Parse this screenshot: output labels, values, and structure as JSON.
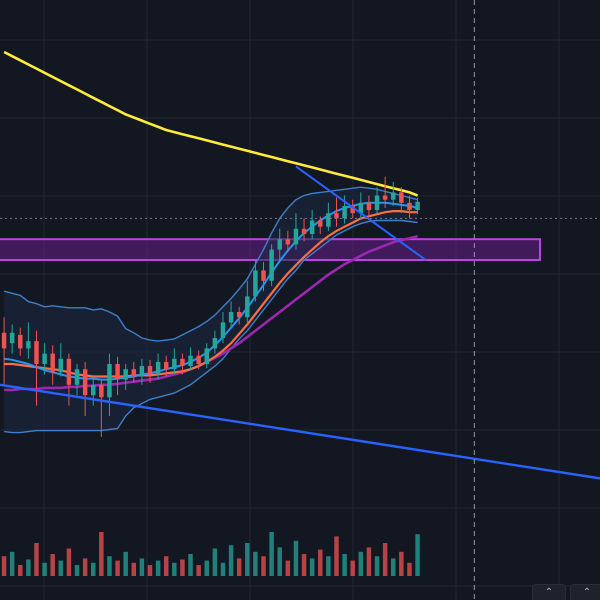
{
  "app": {
    "name": ""
  },
  "colors": {
    "background": "#131722",
    "grid": "#232733",
    "candle_up": "#26a69a",
    "candle_down": "#ef5350",
    "bb_band": "#3d7fc9",
    "bb_fill": "#1c2a42",
    "bb_basis": "#2196f3",
    "ema_fast": "#ff6e40",
    "ema_slow": "#9c27b0",
    "ma_long": "#ffeb3b",
    "trendline": "#2962ff",
    "zone_fill": "#7b1fa2",
    "zone_border": "#c040e8",
    "crosshair": "#787b86"
  },
  "controls": {
    "scroll_left_icon": "chevron-up-icon",
    "scroll_right_icon": "chevron-up-icon"
  },
  "chart_data": {
    "type": "candlestick",
    "candles": [
      [
        220,
        205,
        170,
        235
      ],
      [
        210,
        220,
        200,
        228
      ],
      [
        218,
        205,
        198,
        225
      ],
      [
        205,
        212,
        195,
        230
      ],
      [
        212,
        190,
        150,
        222
      ],
      [
        190,
        200,
        180,
        210
      ],
      [
        200,
        182,
        170,
        208
      ],
      [
        182,
        195,
        178,
        210
      ],
      [
        195,
        170,
        150,
        200
      ],
      [
        170,
        185,
        160,
        190
      ],
      [
        185,
        160,
        140,
        192
      ],
      [
        160,
        170,
        150,
        178
      ],
      [
        170,
        158,
        120,
        175
      ],
      [
        158,
        190,
        140,
        200
      ],
      [
        190,
        175,
        160,
        197
      ],
      [
        175,
        185,
        165,
        190
      ],
      [
        185,
        178,
        172,
        192
      ],
      [
        178,
        188,
        170,
        195
      ],
      [
        188,
        180,
        172,
        194
      ],
      [
        180,
        192,
        175,
        200
      ],
      [
        192,
        185,
        178,
        198
      ],
      [
        185,
        195,
        180,
        205
      ],
      [
        195,
        188,
        180,
        200
      ],
      [
        188,
        198,
        184,
        206
      ],
      [
        198,
        190,
        185,
        203
      ],
      [
        190,
        205,
        186,
        210
      ],
      [
        205,
        215,
        200,
        222
      ],
      [
        215,
        230,
        210,
        240
      ],
      [
        230,
        240,
        225,
        250
      ],
      [
        240,
        235,
        228,
        245
      ],
      [
        235,
        255,
        230,
        270
      ],
      [
        255,
        280,
        250,
        290
      ],
      [
        280,
        270,
        260,
        288
      ],
      [
        270,
        300,
        265,
        305
      ],
      [
        300,
        310,
        290,
        320
      ],
      [
        310,
        305,
        298,
        318
      ],
      [
        305,
        320,
        300,
        335
      ],
      [
        320,
        315,
        308,
        330
      ],
      [
        315,
        328,
        310,
        338
      ],
      [
        328,
        322,
        315,
        332
      ],
      [
        322,
        335,
        318,
        345
      ],
      [
        335,
        330,
        322,
        350
      ],
      [
        330,
        342,
        325,
        352
      ],
      [
        342,
        335,
        330,
        348
      ],
      [
        335,
        345,
        330,
        355
      ],
      [
        345,
        338,
        332,
        352
      ],
      [
        338,
        352,
        335,
        360
      ],
      [
        352,
        348,
        340,
        370
      ],
      [
        348,
        355,
        342,
        365
      ],
      [
        355,
        345,
        335,
        360
      ],
      [
        345,
        338,
        330,
        352
      ],
      [
        338,
        346,
        334,
        350
      ]
    ],
    "bb_upper": [
      260,
      258,
      256,
      250,
      248,
      245,
      246,
      245,
      244,
      244,
      244,
      242,
      243,
      240,
      236,
      224,
      220,
      215,
      213,
      212,
      213,
      214,
      218,
      222,
      226,
      231,
      237,
      245,
      253,
      262,
      272,
      286,
      300,
      316,
      330,
      340,
      348,
      352,
      354,
      355,
      356,
      357,
      358,
      359,
      360,
      359,
      358,
      356,
      354,
      352,
      350,
      348
    ],
    "bb_lower": [
      125,
      124,
      124,
      125,
      126,
      126,
      126,
      126,
      126,
      126,
      126,
      126,
      126,
      127,
      128,
      140,
      148,
      152,
      156,
      158,
      160,
      162,
      166,
      170,
      176,
      182,
      188,
      195,
      205,
      214,
      222,
      232,
      242,
      252,
      262,
      272,
      280,
      290,
      296,
      302,
      308,
      314,
      318,
      322,
      325,
      327,
      328,
      328,
      328,
      328,
      327,
      326
    ],
    "bb_basis": [
      195,
      194,
      192,
      190,
      187,
      184,
      182,
      180,
      178,
      177,
      176,
      176,
      175,
      175,
      176,
      177,
      178,
      180,
      181,
      183,
      185,
      187,
      189,
      192,
      196,
      201,
      208,
      216,
      225,
      234,
      244,
      255,
      266,
      278,
      289,
      299,
      308,
      316,
      322,
      328,
      333,
      337,
      340,
      342,
      344,
      345,
      345,
      345,
      344,
      343,
      342,
      340
    ],
    "ema_fast": [
      190,
      190,
      189,
      188,
      187,
      186,
      185,
      184,
      182,
      180,
      179,
      178,
      178,
      178,
      178,
      178,
      179,
      179,
      179,
      180,
      181,
      182,
      183,
      185,
      188,
      192,
      197,
      203,
      210,
      219,
      228,
      238,
      248,
      258,
      268,
      277,
      285,
      293,
      300,
      307,
      313,
      318,
      322,
      326,
      330,
      332,
      334,
      336,
      337,
      337,
      336,
      336
    ],
    "ema_slow": [
      165,
      165,
      166,
      166,
      166,
      167,
      167,
      167,
      168,
      168,
      169,
      169,
      170,
      170,
      171,
      172,
      173,
      174,
      175,
      176,
      178,
      180,
      182,
      185,
      188,
      192,
      196,
      200,
      205,
      210,
      216,
      222,
      228,
      234,
      240,
      246,
      252,
      258,
      264,
      270,
      276,
      281,
      286,
      290,
      294,
      298,
      301,
      304,
      307,
      309,
      311,
      313
    ],
    "ma_long": [
      490,
      486,
      482,
      478,
      474,
      470,
      466,
      462,
      458,
      454,
      450,
      446,
      442,
      438,
      434,
      430,
      427,
      424,
      421,
      418,
      415,
      413,
      411,
      409,
      407,
      405,
      403,
      401,
      399,
      397,
      395,
      393,
      391,
      389,
      387,
      385,
      383,
      381,
      379,
      377,
      375,
      373,
      371,
      369,
      367,
      365,
      363,
      361,
      359,
      357,
      355,
      352
    ],
    "volume": [
      18,
      22,
      10,
      15,
      30,
      12,
      20,
      14,
      25,
      10,
      16,
      12,
      40,
      18,
      14,
      22,
      12,
      16,
      10,
      14,
      18,
      12,
      15,
      20,
      10,
      14,
      25,
      12,
      28,
      16,
      30,
      22,
      18,
      40,
      26,
      14,
      32,
      20,
      16,
      24,
      18,
      36,
      20,
      14,
      22,
      26,
      18,
      30,
      16,
      22,
      12,
      38
    ],
    "zone": {
      "y_low": 290,
      "y_high": 310
    },
    "falling_trendline": {
      "from": [
        36,
        380
      ],
      "to": [
        52,
        290
      ]
    },
    "long_trendline": {
      "from": [
        0,
        170
      ],
      "to": [
        70,
        80
      ]
    },
    "crosshair_price": 330,
    "crosshair_index": 58,
    "xlim": [
      0,
      74
    ],
    "ylim": [
      40,
      540
    ]
  }
}
